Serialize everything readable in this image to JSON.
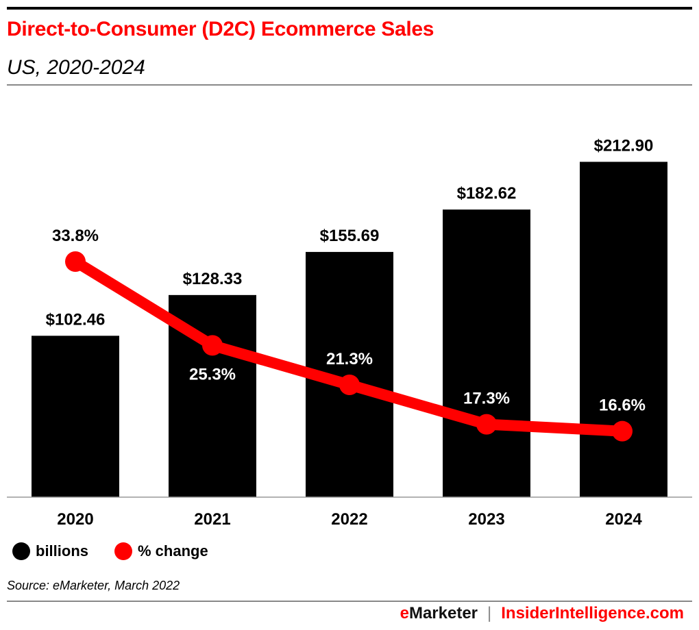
{
  "header": {
    "title": "Direct-to-Consumer (D2C) Ecommerce Sales",
    "subtitle": "US, 2020-2024"
  },
  "chart_data": {
    "type": "bar+line",
    "categories": [
      "2020",
      "2021",
      "2022",
      "2023",
      "2024"
    ],
    "series": [
      {
        "name": "billions",
        "type": "bar",
        "color": "#000000",
        "values": [
          102.46,
          128.33,
          155.69,
          182.62,
          212.9
        ],
        "labels": [
          "$102.46",
          "$128.33",
          "$155.69",
          "$182.62",
          "$212.90"
        ]
      },
      {
        "name": "% change",
        "type": "line",
        "color": "#ff0000",
        "values": [
          33.8,
          25.3,
          21.3,
          17.3,
          16.6
        ],
        "labels": [
          "33.8%",
          "25.3%",
          "21.3%",
          "17.3%",
          "16.6%"
        ]
      }
    ],
    "grid": false,
    "legend": "bottom-left"
  },
  "legend": {
    "bars": "billions",
    "line": "% change"
  },
  "source": "Source: eMarketer, March 2022",
  "footer": {
    "brand_e": "e",
    "brand_rest": "Marketer",
    "separator": "|",
    "site": "InsiderIntelligence.com"
  },
  "colors": {
    "accent": "#ff0000",
    "bar": "#000000"
  }
}
